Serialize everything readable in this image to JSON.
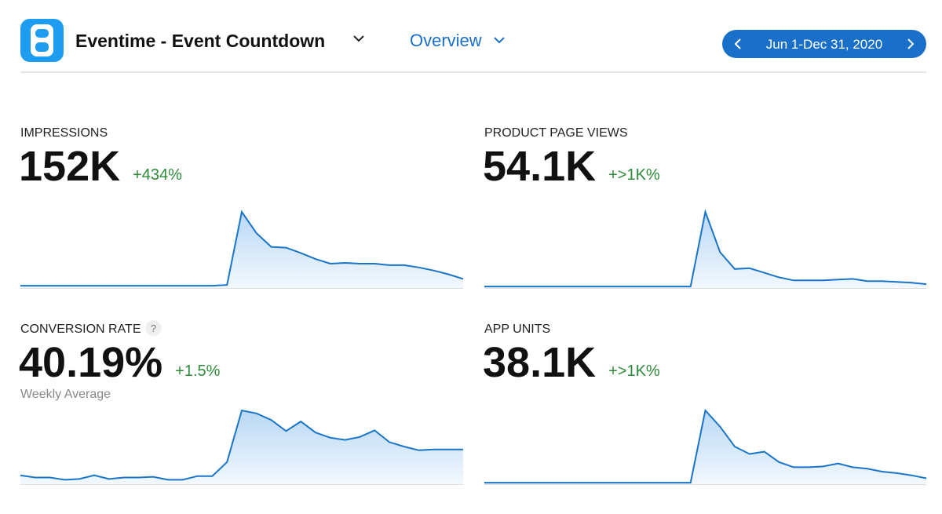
{
  "header": {
    "app_name": "Eventime - Event Countdown",
    "view": "Overview",
    "date_range": "Jun 1-Dec 31, 2020"
  },
  "metrics": [
    {
      "label": "IMPRESSIONS",
      "value": "152K",
      "change": "+434%",
      "sparkline": [
        3,
        3,
        3,
        3,
        3,
        3,
        3,
        3,
        3,
        3,
        3,
        3,
        3,
        3,
        4,
        100,
        72,
        54,
        53,
        46,
        38,
        32,
        33,
        32,
        32,
        30,
        30,
        27,
        23,
        18,
        12
      ]
    },
    {
      "label": "PRODUCT PAGE VIEWS",
      "value": "54.1K",
      "change": "+>1K%",
      "sparkline": [
        2,
        2,
        2,
        2,
        2,
        2,
        2,
        2,
        2,
        2,
        2,
        2,
        2,
        2,
        2,
        100,
        47,
        25,
        26,
        20,
        14,
        10,
        10,
        10,
        11,
        12,
        9,
        9,
        8,
        7,
        5
      ]
    },
    {
      "label": "CONVERSION RATE",
      "help": "?",
      "value": "40.19%",
      "change": "+1.5%",
      "note": "Weekly Average",
      "sparkline": [
        12,
        9,
        9,
        6,
        7,
        12,
        7,
        9,
        9,
        10,
        6,
        6,
        11,
        11,
        30,
        100,
        96,
        87,
        72,
        85,
        70,
        63,
        60,
        64,
        73,
        57,
        51,
        46,
        47,
        47,
        47
      ]
    },
    {
      "label": "APP UNITS",
      "value": "38.1K",
      "change": "+>1K%",
      "sparkline": [
        2,
        2,
        2,
        2,
        2,
        2,
        2,
        2,
        2,
        2,
        2,
        2,
        2,
        2,
        2,
        100,
        78,
        51,
        41,
        44,
        30,
        23,
        23,
        24,
        28,
        23,
        21,
        17,
        15,
        12,
        8
      ]
    }
  ]
}
